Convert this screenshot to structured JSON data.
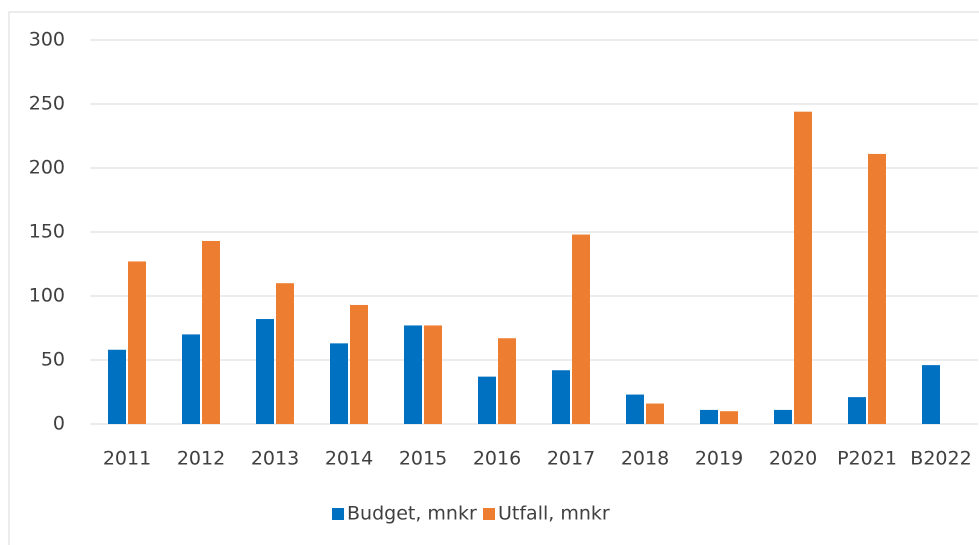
{
  "chart_data": {
    "type": "bar",
    "categories": [
      "2011",
      "2012",
      "2013",
      "2014",
      "2015",
      "2016",
      "2017",
      "2018",
      "2019",
      "2020",
      "P2021",
      "B2022"
    ],
    "series": [
      {
        "name": "Budget, mnkr",
        "color": "#0070c0",
        "values": [
          58,
          70,
          82,
          63,
          77,
          37,
          42,
          23,
          11,
          11,
          21,
          46
        ]
      },
      {
        "name": "Utfall, mnkr",
        "color": "#ed7d31",
        "values": [
          127,
          143,
          110,
          93,
          77,
          67,
          148,
          16,
          10,
          244,
          211,
          null
        ]
      }
    ],
    "ylim": [
      0,
      300
    ],
    "yticks": [
      0,
      50,
      100,
      150,
      200,
      250,
      300
    ],
    "grid": true,
    "legend": "bottom"
  }
}
